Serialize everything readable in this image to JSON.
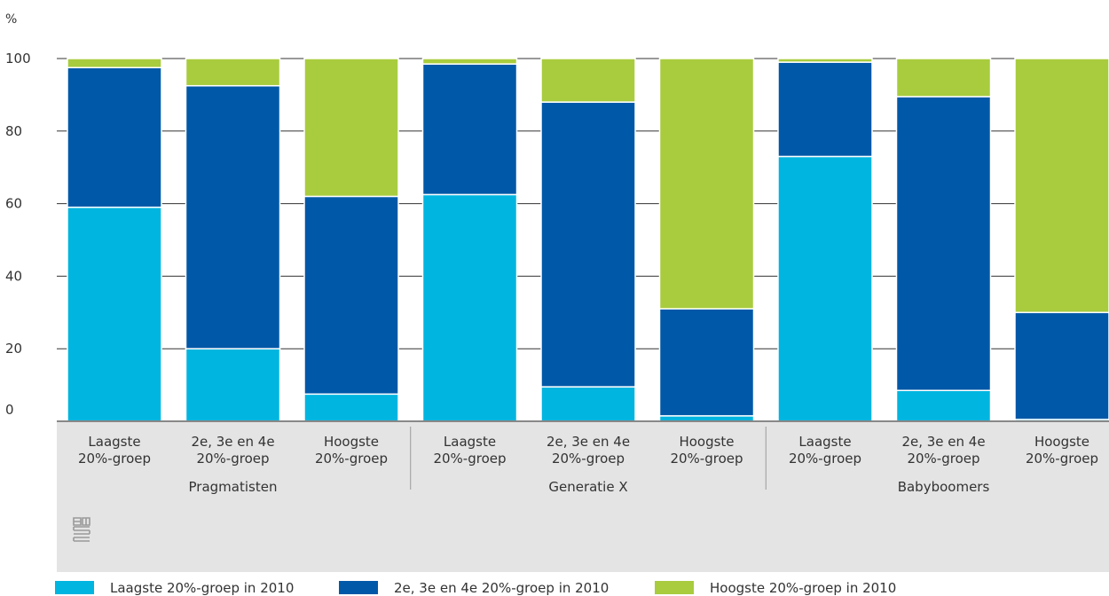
{
  "chart_data": {
    "type": "bar",
    "stacked": true,
    "ylabel": "%",
    "ylim": [
      0,
      100
    ],
    "yticks": [
      0,
      20,
      40,
      60,
      80,
      100
    ],
    "grid": true,
    "legend_position": "bottom",
    "categories": [
      "Laagste 20%-groep",
      "2e, 3e en 4e 20%-groep",
      "Hoogste 20%-groep",
      "Laagste 20%-groep",
      "2e, 3e en 4e 20%-groep",
      "Hoogste 20%-groep",
      "Laagste 20%-groep",
      "2e, 3e en 4e 20%-groep",
      "Hoogste 20%-groep"
    ],
    "groups": [
      {
        "label": "Pragmatisten",
        "categories": [
          0,
          1,
          2
        ]
      },
      {
        "label": "Generatie X",
        "categories": [
          3,
          4,
          5
        ]
      },
      {
        "label": "Babyboomers",
        "categories": [
          6,
          7,
          8
        ]
      }
    ],
    "series": [
      {
        "name": "Laagste 20%-groep in 2010",
        "color": "#00b5e0",
        "values": [
          59,
          20,
          7.5,
          62.5,
          9.5,
          1.5,
          73,
          8.5,
          0.5
        ]
      },
      {
        "name": "2e, 3e en 4e 20%-groep in 2010",
        "color": "#0058a8",
        "values": [
          38.5,
          72.5,
          54.5,
          36,
          78.5,
          29.5,
          26,
          81,
          29.5
        ]
      },
      {
        "name": "Hoogste 20%-groep in 2010",
        "color": "#a8cc3e",
        "values": [
          2.5,
          7.5,
          38,
          1.5,
          12,
          69,
          1,
          10.5,
          70
        ]
      }
    ]
  },
  "logo": "cbs"
}
